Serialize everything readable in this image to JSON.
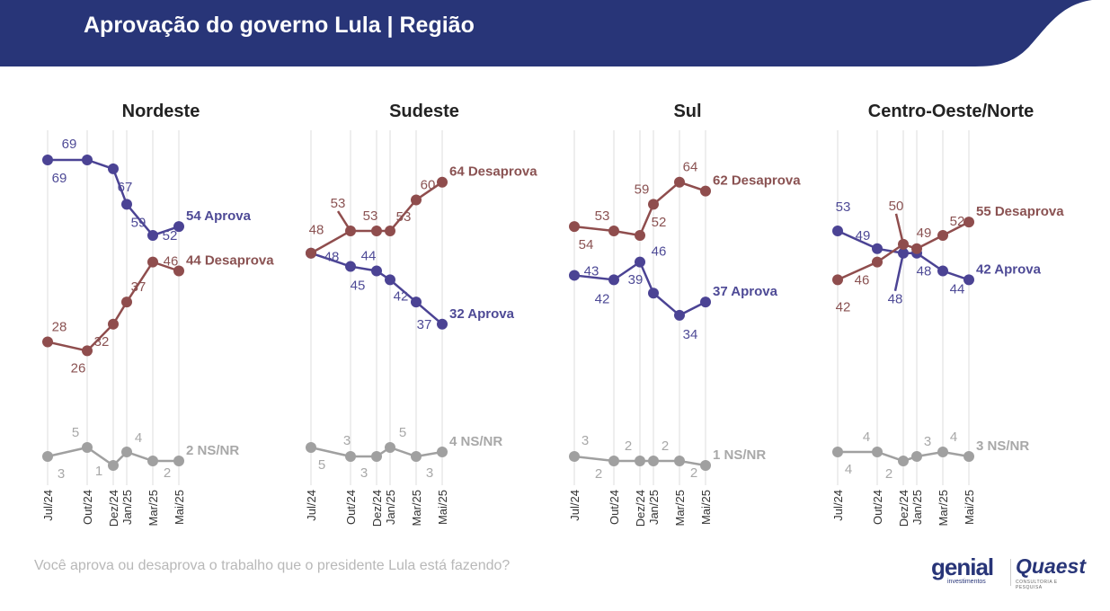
{
  "header": {
    "title": "Aprovação do governo Lula | Região"
  },
  "footer": {
    "question": "Você aprova ou desaprova o trabalho que o presidente Lula está fazendo?"
  },
  "logos": {
    "genial": "genial",
    "genial_sub": "investimentos",
    "quaest": "Quaest",
    "quaest_sub": "CONSULTORIA E PESQUISA"
  },
  "colors": {
    "header": "#283578",
    "aprova": "#4b4394",
    "desaprova": "#8f4d4d",
    "nsnr": "#a0a0a0",
    "grid": "#e8e8e8"
  },
  "chart_data": [
    {
      "type": "line",
      "title": "Nordeste",
      "x": [
        "Jul/24",
        "Out/24",
        "Dez/24",
        "Jan/25",
        "Mar/25",
        "Mai/25"
      ],
      "series": [
        {
          "name": "Aprova",
          "values": [
            69,
            69,
            67,
            59,
            52,
            54
          ]
        },
        {
          "name": "Desaprova",
          "values": [
            28,
            26,
            32,
            37,
            46,
            44
          ]
        },
        {
          "name": "NS/NR",
          "values": [
            3,
            5,
            1,
            4,
            2,
            2
          ]
        }
      ]
    },
    {
      "type": "line",
      "title": "Sudeste",
      "x": [
        "Jul/24",
        "Out/24",
        "Dez/24",
        "Jan/25",
        "Mar/25",
        "Mai/25"
      ],
      "series": [
        {
          "name": "Aprova",
          "values": [
            48,
            45,
            44,
            42,
            37,
            32
          ]
        },
        {
          "name": "Desaprova",
          "values": [
            48,
            53,
            53,
            53,
            60,
            64
          ]
        },
        {
          "name": "NS/NR",
          "values": [
            5,
            3,
            3,
            5,
            3,
            4
          ]
        }
      ]
    },
    {
      "type": "line",
      "title": "Sul",
      "x": [
        "Jul/24",
        "Out/24",
        "Dez/24",
        "Jan/25",
        "Mar/25",
        "Mai/25"
      ],
      "series": [
        {
          "name": "Aprova",
          "values": [
            43,
            42,
            46,
            39,
            34,
            37
          ]
        },
        {
          "name": "Desaprova",
          "values": [
            54,
            53,
            52,
            59,
            64,
            62
          ]
        },
        {
          "name": "NS/NR",
          "values": [
            3,
            2,
            2,
            2,
            2,
            1
          ]
        }
      ]
    },
    {
      "type": "line",
      "title": "Centro-Oeste/Norte",
      "x": [
        "Jul/24",
        "Out/24",
        "Dez/24",
        "Jan/25",
        "Mar/25",
        "Mai/25"
      ],
      "series": [
        {
          "name": "Aprova",
          "values": [
            53,
            49,
            48,
            48,
            44,
            42
          ]
        },
        {
          "name": "Desaprova",
          "values": [
            42,
            46,
            50,
            49,
            52,
            55
          ]
        },
        {
          "name": "NS/NR",
          "values": [
            4,
            4,
            2,
            3,
            4,
            3
          ]
        }
      ]
    }
  ]
}
